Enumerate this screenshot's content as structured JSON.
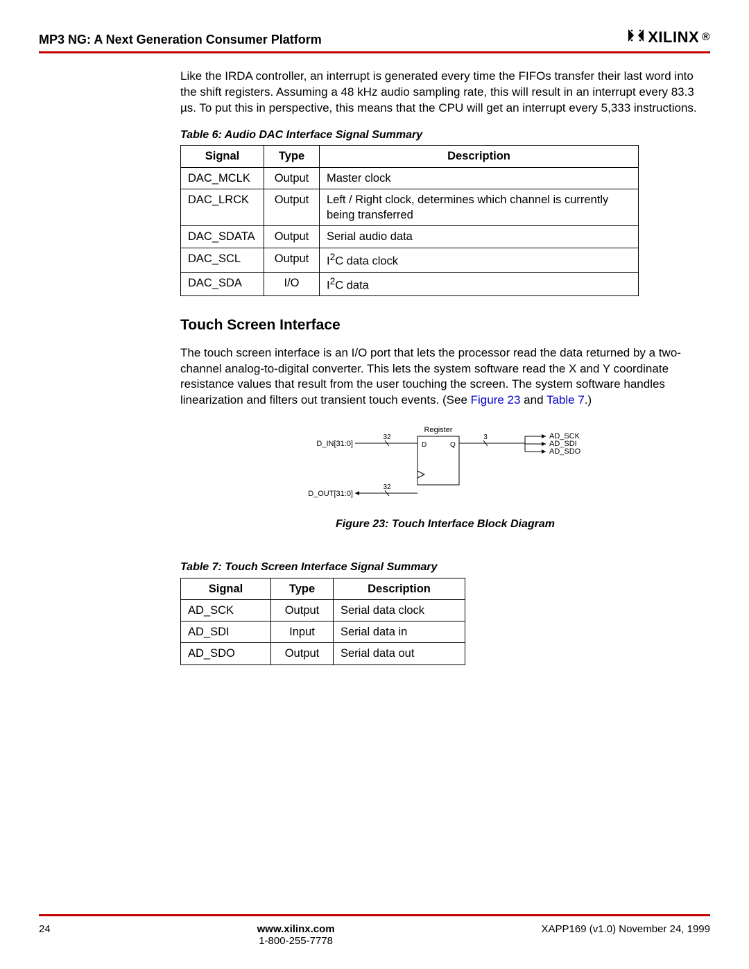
{
  "header": {
    "title": "MP3 NG: A Next Generation Consumer Platform",
    "logo_text": "XILINX",
    "logo_reg": "®"
  },
  "paragraph1": "Like the IRDA controller, an interrupt is generated every time the FIFOs transfer their last word into the shift registers. Assuming a 48 kHz audio sampling rate, this will result in an interrupt every 83.3 µs. To put this in perspective, this means that the CPU will get an interrupt every 5,333 instructions.",
  "table6": {
    "caption": "Table 6:  Audio DAC Interface Signal Summary",
    "columns": [
      "Signal",
      "Type",
      "Description"
    ],
    "rows": [
      {
        "signal": "DAC_MCLK",
        "type": "Output",
        "desc": "Master clock"
      },
      {
        "signal": "DAC_LRCK",
        "type": "Output",
        "desc": "Left / Right clock, determines which channel is currently being transferred"
      },
      {
        "signal": "DAC_SDATA",
        "type": "Output",
        "desc": "Serial audio data"
      },
      {
        "signal": "DAC_SCL",
        "type": "Output",
        "desc_html": "I<sup>2</sup>C data clock"
      },
      {
        "signal": "DAC_SDA",
        "type": "I/O",
        "desc_html": "I<sup>2</sup>C data"
      }
    ],
    "col_widths": [
      "120px",
      "80px",
      "460px"
    ]
  },
  "section_heading": "Touch Screen Interface",
  "paragraph2_pre": "The touch screen interface is an I/O port that lets the processor read the data returned by a two-channel analog-to-digital converter. This lets the system software read the X and Y coordinate resistance values that result from the user touching the screen. The system software handles linearization and filters out transient touch events. (See ",
  "fig_ref": "Figure 23",
  "paragraph2_mid": " and ",
  "tab_ref": "Table 7",
  "paragraph2_post": ".)",
  "figure23": {
    "caption": "Figure 23:  Touch Interface Block Diagram",
    "labels": {
      "register": "Register",
      "d_in": "D_IN[31:0]",
      "d_out": "D_OUT[31:0]",
      "ad_sck": "AD_SCK",
      "ad_sdi": "AD_SDI",
      "ad_sdo": "AD_SDO",
      "d": "D",
      "q": "Q",
      "w32a": "32",
      "w32b": "32",
      "w3": "3"
    },
    "colors": {
      "line": "#000000"
    }
  },
  "table7": {
    "caption": "Table 7:  Touch Screen Interface Signal Summary",
    "columns": [
      "Signal",
      "Type",
      "Description"
    ],
    "rows": [
      {
        "signal": "AD_SCK",
        "type": "Output",
        "desc": "Serial data clock"
      },
      {
        "signal": "AD_SDI",
        "type": "Input",
        "desc": "Serial data in"
      },
      {
        "signal": "AD_SDO",
        "type": "Output",
        "desc": "Serial data out"
      }
    ],
    "col_widths": [
      "130px",
      "90px",
      "190px"
    ]
  },
  "footer": {
    "page": "24",
    "link": "www.xilinx.com",
    "phone": "1-800-255-7778",
    "docid": "XAPP169 (v1.0) November 24, 1999"
  }
}
